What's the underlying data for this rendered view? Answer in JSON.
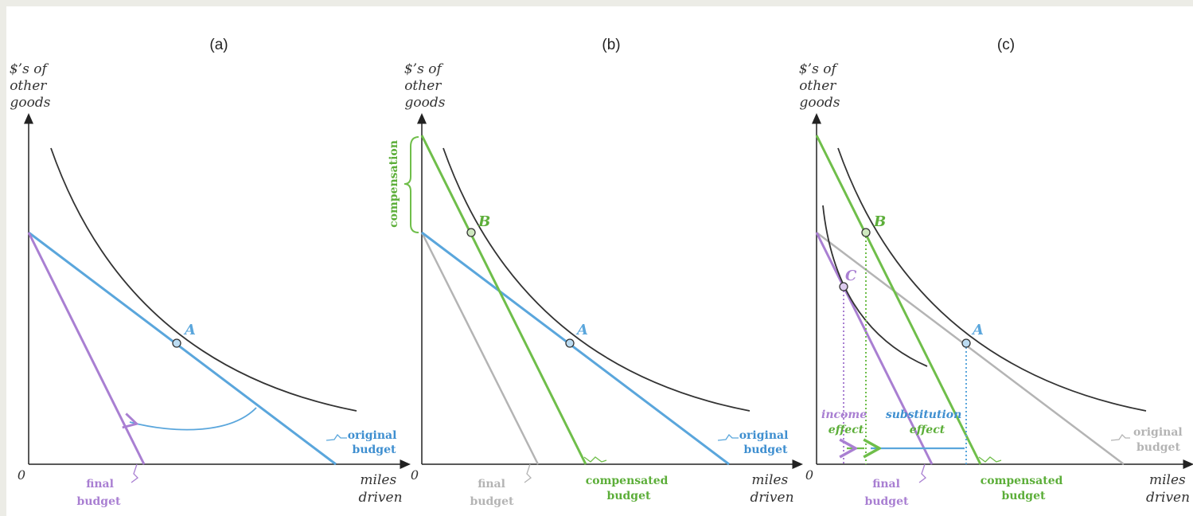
{
  "panels": {
    "a": {
      "title": "(a)",
      "y_label": [
        "$’s of",
        "other",
        "goods"
      ],
      "x_label": [
        "miles",
        "driven"
      ],
      "origin": "0",
      "point_a": "A",
      "original_budget": [
        "original",
        "budget"
      ],
      "final_budget": [
        "final",
        "budget"
      ]
    },
    "b": {
      "title": "(b)",
      "y_label": [
        "$’s of",
        "other",
        "goods"
      ],
      "x_label": [
        "miles",
        "driven"
      ],
      "origin": "0",
      "point_a": "A",
      "point_b": "B",
      "compensation": "compensation",
      "original_budget": [
        "original",
        "budget"
      ],
      "final_budget": [
        "final",
        "budget"
      ],
      "compensated_budget": [
        "compensated",
        "budget"
      ]
    },
    "c": {
      "title": "(c)",
      "y_label": [
        "$’s of",
        "other",
        "goods"
      ],
      "x_label": [
        "miles",
        "driven"
      ],
      "origin": "0",
      "point_a": "A",
      "point_b": "B",
      "point_c": "C",
      "income_effect": [
        "income",
        "effect"
      ],
      "substitution_effect": [
        "substitution",
        "effect"
      ],
      "original_budget": [
        "original",
        "budget"
      ],
      "final_budget": [
        "final",
        "budget"
      ],
      "compensated_budget": [
        "compensated",
        "budget"
      ]
    }
  },
  "colors": {
    "background": "#ecece6",
    "plot_bg": "#ffffff",
    "axis": "#222222",
    "curve": "#333333",
    "original_blue": "#5aa6dc",
    "label_blue": "#3f8fd0",
    "final_purple": "#a97fd2",
    "compensated_green": "#6fbe4a",
    "label_green": "#5cae39",
    "faded_gray": "#b4b4b4"
  }
}
